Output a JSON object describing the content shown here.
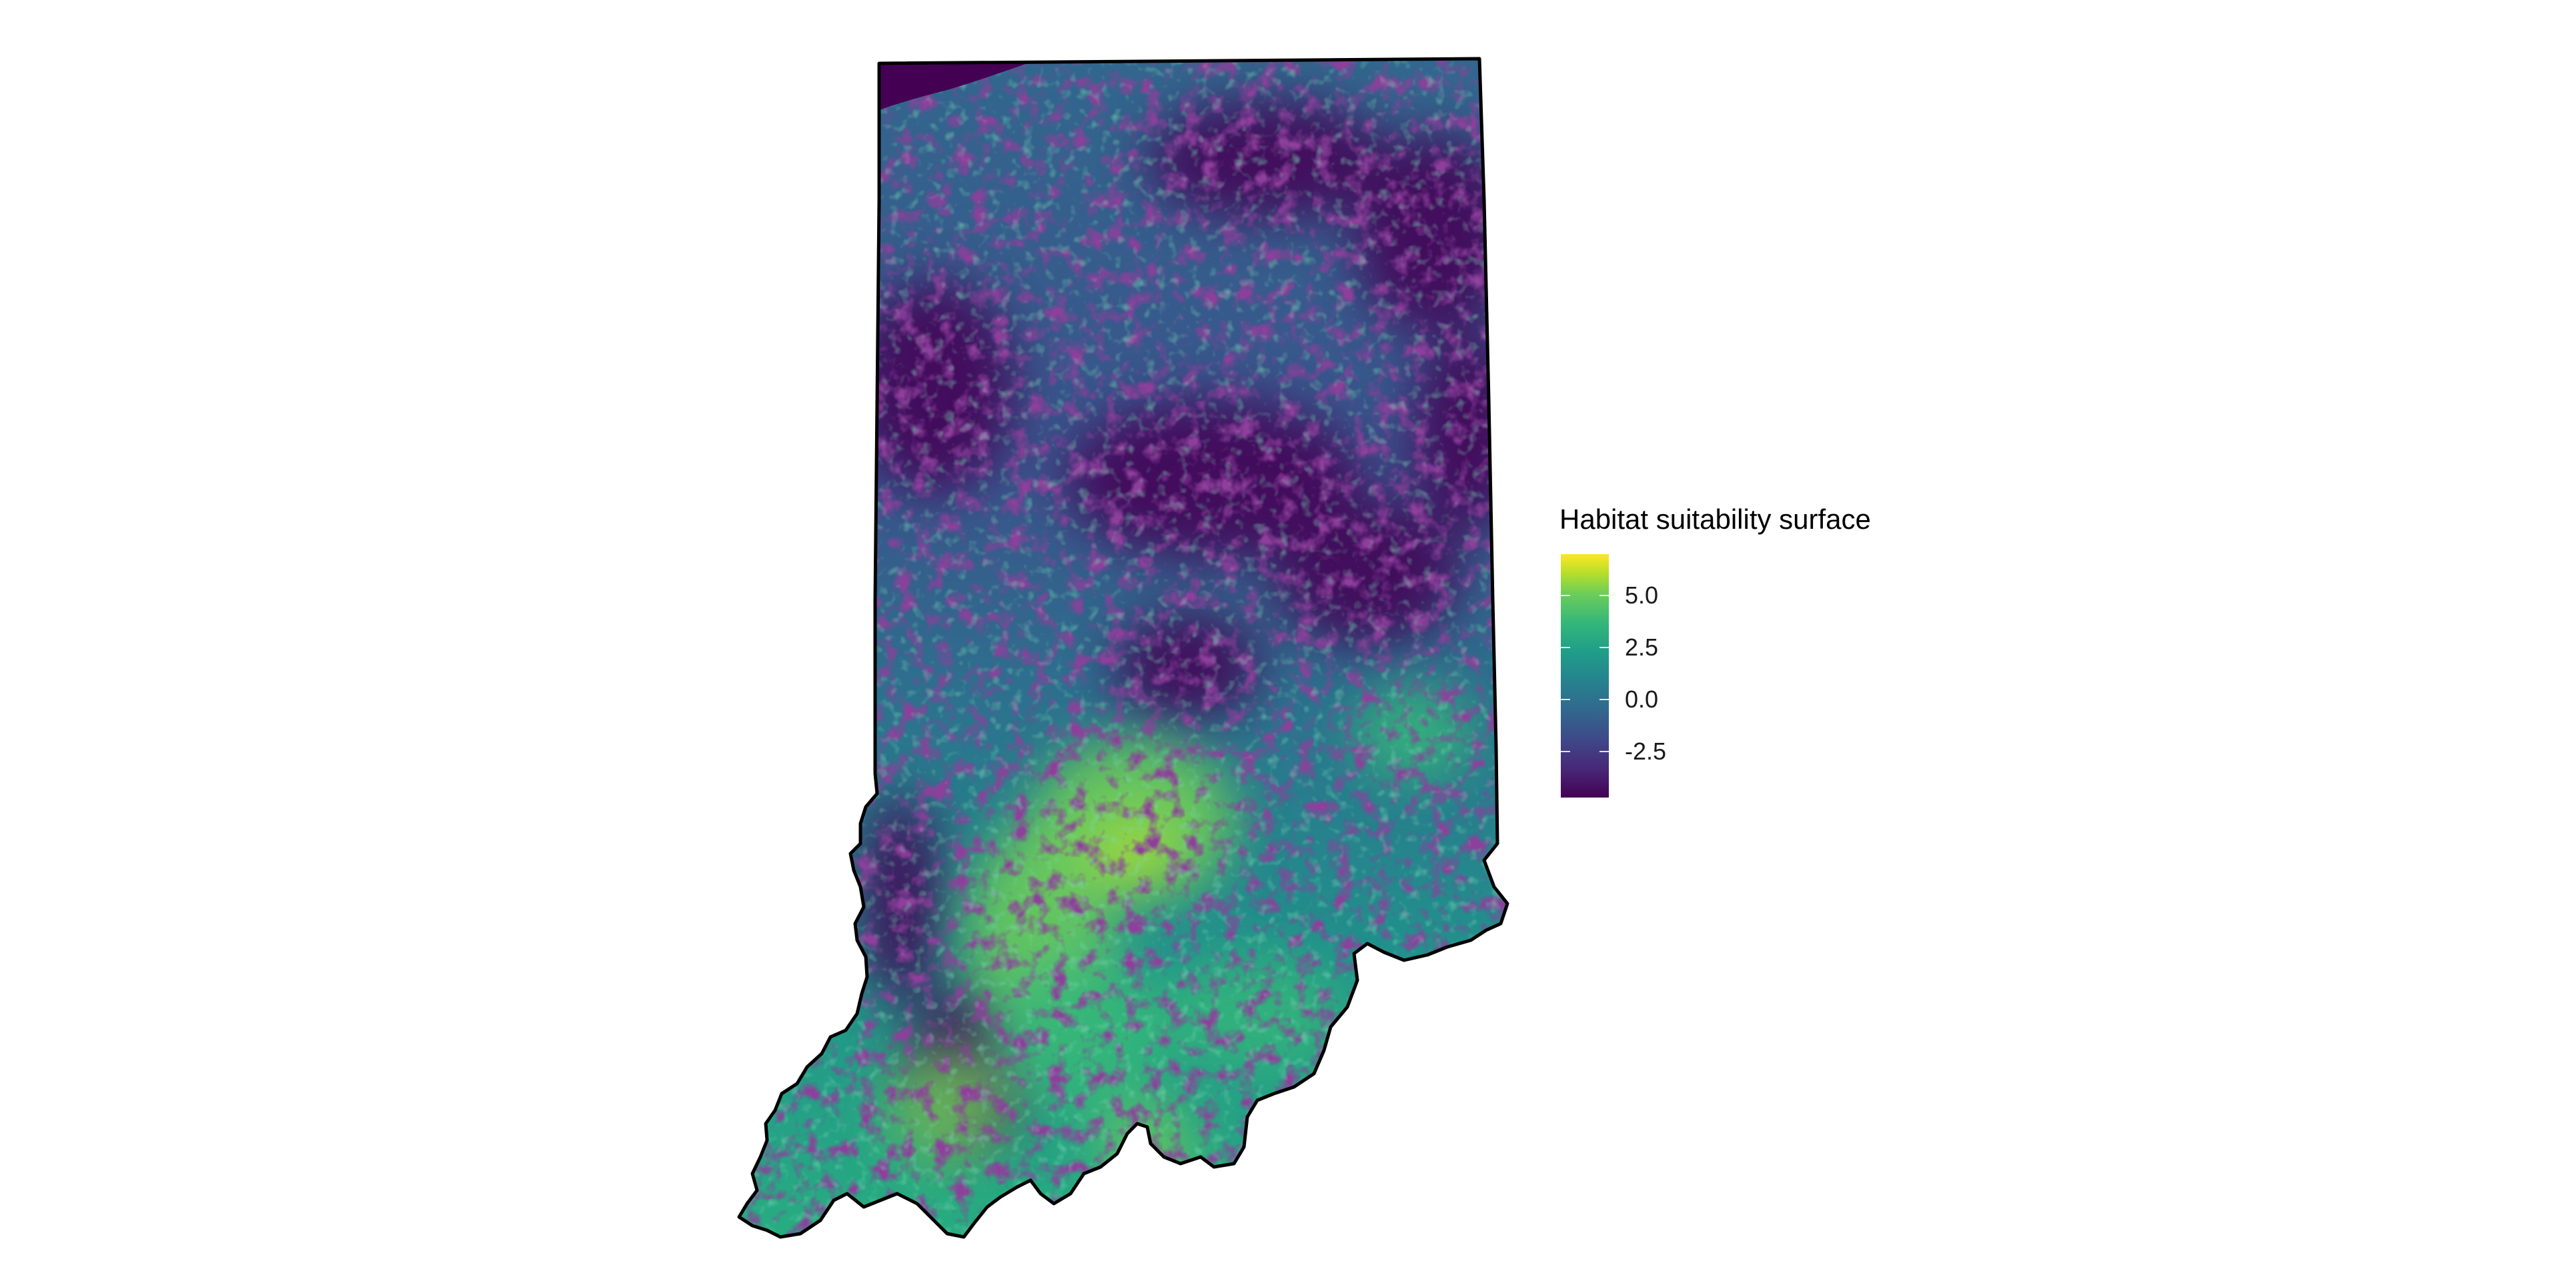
{
  "map": {
    "region_name": "Indiana",
    "fill_scale": "viridis",
    "border_color": "#000000",
    "background_color": "#ffffff"
  },
  "legend": {
    "title": "Habitat suitability surface",
    "min": -4.7,
    "max": 7.0,
    "ticks": [
      {
        "value": 5.0,
        "label": "5.0"
      },
      {
        "value": 2.5,
        "label": "2.5"
      },
      {
        "value": 0.0,
        "label": "0.0"
      },
      {
        "value": -2.5,
        "label": "-2.5"
      }
    ],
    "colors": {
      "low": "#440154",
      "mid": "#21918c",
      "high": "#fde725"
    }
  }
}
